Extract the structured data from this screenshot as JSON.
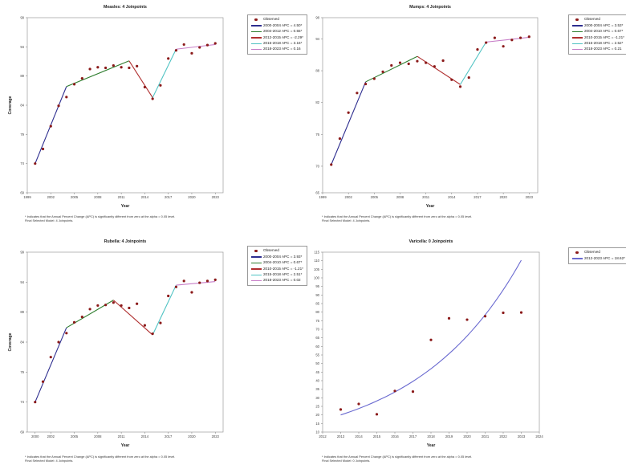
{
  "footnote": {
    "line1": "* Indicates that the Annual Percent Change (APC) is significantly different from zero at the alpha = 0.05 level.",
    "line2_4": "Final Selected Model: 4 Joinpoints.",
    "line2_0": "Final Selected Model: 0 Joinpoints."
  },
  "colors": {
    "observed": "#8b1a1a",
    "seg1": "#2d2d8f",
    "seg2": "#2e7d2e",
    "seg3": "#b03030",
    "seg4": "#4fc3c3",
    "seg5": "#c77dc7",
    "single": "#6a6ad0"
  },
  "chart_data": [
    {
      "type": "scatter",
      "title": "Measles: 4 Joinpoints",
      "xlabel": "Year",
      "ylabel": "Coverage",
      "xlim": [
        1999,
        2024
      ],
      "ylim": [
        69,
        99
      ],
      "yticks": [
        69,
        74,
        79,
        84,
        89,
        94,
        99
      ],
      "xticks": [
        1999,
        2002,
        2005,
        2008,
        2011,
        2014,
        2017,
        2020,
        2023
      ],
      "observed_label": "Observed",
      "observed": {
        "x": [
          2000,
          2001,
          2002,
          2003,
          2004,
          2005,
          2006,
          2007,
          2008,
          2009,
          2010,
          2011,
          2012,
          2013,
          2014,
          2015,
          2016,
          2017,
          2018,
          2019,
          2020,
          2021,
          2022,
          2023
        ],
        "y": [
          74.0,
          76.5,
          80.4,
          83.9,
          85.4,
          87.6,
          88.6,
          90.2,
          90.5,
          90.4,
          90.8,
          90.5,
          90.4,
          90.7,
          87.1,
          85.1,
          87.4,
          92.0,
          93.4,
          94.4,
          92.9,
          93.9,
          94.3,
          94.6
        ]
      },
      "segments": [
        {
          "label": "2000-2004 APC = 4.50*",
          "x": [
            2000,
            2004
          ],
          "y": [
            74.0,
            87.2
          ]
        },
        {
          "label": "2004-2012 APC = 0.55*",
          "x": [
            2004,
            2012
          ],
          "y": [
            87.2,
            91.6
          ]
        },
        {
          "label": "2012-2015 APC = -2.29*",
          "x": [
            2012,
            2015
          ],
          "y": [
            91.6,
            85.3
          ]
        },
        {
          "label": "2015-2018 APC = 3.16*",
          "x": [
            2015,
            2018
          ],
          "y": [
            85.3,
            93.6
          ]
        },
        {
          "label": "2018-2023 APC = 0.16",
          "x": [
            2018,
            2023
          ],
          "y": [
            93.6,
            94.4
          ]
        }
      ]
    },
    {
      "type": "scatter",
      "title": "Mumps: 4 Joinpoints",
      "xlabel": "Year",
      "ylabel": "Coverage",
      "xlim": [
        1999,
        2024
      ],
      "ylim": [
        65,
        98
      ],
      "yticks": [
        65,
        70,
        76,
        82,
        88,
        94,
        98
      ],
      "xticks": [
        1999,
        2002,
        2005,
        2008,
        2011,
        2014,
        2017,
        2020,
        2023
      ],
      "observed_label": "Observed",
      "observed": {
        "x": [
          2000,
          2001,
          2002,
          2003,
          2004,
          2005,
          2006,
          2007,
          2008,
          2009,
          2010,
          2011,
          2012,
          2013,
          2014,
          2015,
          2016,
          2017,
          2018,
          2019,
          2020,
          2021,
          2022,
          2023
        ],
        "y": [
          70.3,
          75.2,
          80.1,
          83.8,
          85.5,
          86.5,
          87.8,
          89.0,
          89.5,
          89.3,
          89.8,
          89.5,
          88.8,
          89.9,
          86.3,
          85.0,
          86.7,
          92.0,
          93.3,
          94.2,
          92.6,
          93.8,
          94.2,
          94.4
        ]
      },
      "segments": [
        {
          "label": "2000-2004 APC = 3.53*",
          "x": [
            2000,
            2004
          ],
          "y": [
            70.3,
            85.9
          ]
        },
        {
          "label": "2004-2010 APC = 0.67*",
          "x": [
            2004,
            2010
          ],
          "y": [
            85.9,
            90.7
          ]
        },
        {
          "label": "2010-2015 APC = -1.21*",
          "x": [
            2010,
            2015
          ],
          "y": [
            90.7,
            85.4
          ]
        },
        {
          "label": "2015-2018 APC = 2.52*",
          "x": [
            2015,
            2018
          ],
          "y": [
            85.4,
            93.4
          ]
        },
        {
          "label": "2018-2023 APC = 0.21",
          "x": [
            2018,
            2023
          ],
          "y": [
            93.4,
            94.3
          ]
        }
      ]
    },
    {
      "type": "scatter",
      "title": "Rubella: 4 Joinpoints",
      "xlabel": "Year",
      "ylabel": "Coverage",
      "xlim": [
        1999,
        2024
      ],
      "ylim": [
        69,
        99
      ],
      "yticks": [
        69,
        74,
        79,
        84,
        89,
        94,
        99
      ],
      "xticks": [
        2000,
        2002,
        2005,
        2008,
        2011,
        2014,
        2017,
        2020,
        2023
      ],
      "observed_label": "Observed",
      "observed": {
        "x": [
          2000,
          2001,
          2002,
          2003,
          2004,
          2005,
          2006,
          2007,
          2008,
          2009,
          2010,
          2011,
          2012,
          2013,
          2014,
          2015,
          2016,
          2017,
          2018,
          2019,
          2020,
          2021,
          2022,
          2023
        ],
        "y": [
          74.0,
          77.4,
          81.5,
          84.0,
          85.5,
          87.3,
          88.2,
          89.5,
          90.1,
          90.2,
          90.6,
          90.1,
          89.7,
          90.4,
          86.8,
          85.4,
          87.2,
          91.7,
          93.2,
          94.2,
          92.3,
          93.9,
          94.2,
          94.4
        ]
      },
      "segments": [
        {
          "label": "2000-2004 APC = 3.93*",
          "x": [
            2000,
            2004
          ],
          "y": [
            74.0,
            86.4
          ]
        },
        {
          "label": "2004-2010 APC = 0.67*",
          "x": [
            2004,
            2010
          ],
          "y": [
            86.4,
            91.0
          ]
        },
        {
          "label": "2010-2015 APC = -1.21*",
          "x": [
            2010,
            2015
          ],
          "y": [
            91.0,
            85.2
          ]
        },
        {
          "label": "2015-2018 APC = 2.51*",
          "x": [
            2015,
            2018
          ],
          "y": [
            85.2,
            93.5
          ]
        },
        {
          "label": "2018-2023 APC = 0.02",
          "x": [
            2018,
            2023
          ],
          "y": [
            93.5,
            94.1
          ]
        }
      ]
    },
    {
      "type": "scatter",
      "title": "Varicella: 0 Joinpoints",
      "xlabel": "Year",
      "ylabel": "Coverage",
      "xlim": [
        2012,
        2024
      ],
      "ylim": [
        10,
        115
      ],
      "yticks": [
        10,
        15,
        20,
        25,
        30,
        35,
        40,
        45,
        50,
        55,
        60,
        65,
        70,
        75,
        80,
        85,
        90,
        95,
        100,
        105,
        110,
        115
      ],
      "xticks": [
        2012,
        2013,
        2014,
        2015,
        2016,
        2017,
        2018,
        2019,
        2020,
        2021,
        2022,
        2023,
        2024
      ],
      "observed_label": "Observed",
      "observed": {
        "x": [
          2013,
          2014,
          2015,
          2016,
          2017,
          2018,
          2019,
          2020,
          2021,
          2022,
          2023
        ],
        "y": [
          23.2,
          26.4,
          20.4,
          34.0,
          33.6,
          63.8,
          76.4,
          75.6,
          77.6,
          79.6,
          79.8
        ]
      },
      "fit": {
        "label": "2012-2023 APC = 18.62*",
        "start_year": 2013,
        "end_year": 2023,
        "start_value": 20.0,
        "apc": 18.62
      }
    }
  ]
}
